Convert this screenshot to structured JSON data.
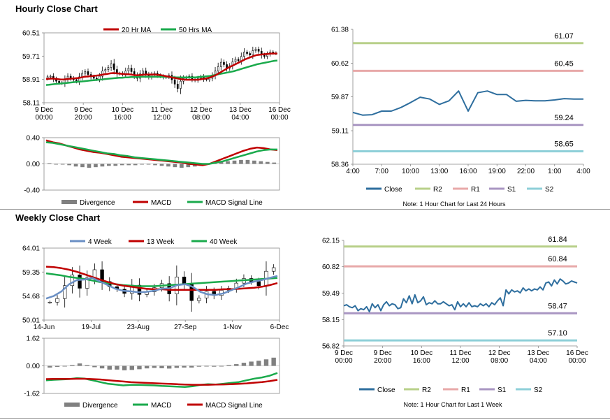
{
  "sections": {
    "hourly_title": "Hourly Close Chart",
    "weekly_title": "Weekly Close Chart"
  },
  "colors": {
    "ma_short": "#c00000",
    "ma_long": "#1aaa4c",
    "close": "#2e6e9e",
    "r2": "#b8d08a",
    "r1": "#e8a9a9",
    "s1": "#a996c2",
    "s2": "#8ecfd8",
    "divergence": "#808080",
    "week4": "#6a8fc4"
  },
  "chart_data": [
    {
      "id": "hourly_price",
      "type": "candlestick",
      "legend": [
        "20 Hr MA",
        "50 Hrs MA"
      ],
      "y_ticks": [
        "60.51",
        "59.71",
        "58.91",
        "58.11"
      ],
      "ylim": [
        58.11,
        60.51
      ],
      "x_ticks": [
        "9 Dec\n00:00",
        "9 Dec\n20:00",
        "10 Dec\n16:00",
        "11 Dec\n12:00",
        "12 Dec\n08:00",
        "13 Dec\n04:00",
        "16 Dec\n00:00"
      ],
      "closes": [
        59.0,
        59.02,
        58.92,
        58.85,
        58.8,
        58.78,
        58.92,
        59.02,
        58.95,
        58.9,
        58.85,
        59.0,
        59.12,
        59.18,
        59.08,
        59.0,
        58.95,
        58.92,
        59.02,
        59.2,
        59.25,
        59.32,
        59.45,
        59.25,
        59.1,
        59.12,
        59.08,
        59.2,
        59.3,
        59.18,
        59.05,
        58.95,
        59.1,
        59.2,
        59.08,
        59.0,
        59.08,
        59.12,
        59.05,
        59.02,
        58.98,
        59.0,
        59.05,
        58.9,
        58.75,
        58.6,
        58.85,
        58.95,
        58.98,
        59.02,
        58.92,
        58.88,
        58.95,
        59.0,
        58.92,
        58.9,
        58.95,
        59.05,
        59.2,
        59.35,
        59.5,
        59.42,
        59.3,
        59.38,
        59.52,
        59.6,
        59.55,
        59.7,
        59.85,
        59.8,
        59.75,
        59.9,
        59.95,
        59.88,
        59.75,
        59.7,
        59.78,
        59.85,
        59.82,
        59.8
      ],
      "ma20": [
        58.92,
        58.93,
        58.94,
        58.93,
        58.92,
        58.91,
        58.91,
        58.92,
        58.93,
        58.94,
        58.95,
        58.96,
        58.98,
        59.0,
        59.01,
        59.02,
        59.03,
        59.04,
        59.05,
        59.07,
        59.09,
        59.1,
        59.12,
        59.13,
        59.12,
        59.11,
        59.1,
        59.09,
        59.09,
        59.08,
        59.06,
        59.05,
        59.06,
        59.07,
        59.08,
        59.08,
        59.08,
        59.08,
        59.07,
        59.06,
        59.04,
        59.02,
        59.0,
        58.98,
        58.96,
        58.94,
        58.92,
        58.91,
        58.9,
        58.9,
        58.9,
        58.9,
        58.9,
        58.92,
        58.93,
        58.95,
        58.98,
        59.02,
        59.06,
        59.12,
        59.18,
        59.24,
        59.3,
        59.35,
        59.4,
        59.45,
        59.5,
        59.55,
        59.6,
        59.64,
        59.68,
        59.72,
        59.75,
        59.76,
        59.77,
        59.78,
        59.79,
        59.8,
        59.8,
        59.8
      ],
      "ma50": [
        58.72,
        58.73,
        58.74,
        58.75,
        58.76,
        58.77,
        58.78,
        58.79,
        58.8,
        58.81,
        58.82,
        58.83,
        58.84,
        58.85,
        58.86,
        58.87,
        58.88,
        58.89,
        58.9,
        58.91,
        58.92,
        58.93,
        58.94,
        58.95,
        58.96,
        58.97,
        58.97,
        58.98,
        58.98,
        58.99,
        58.99,
        58.99,
        59.0,
        59.0,
        59.0,
        59.0,
        59.0,
        59.0,
        59.0,
        59.0,
        59.0,
        59.0,
        58.99,
        58.99,
        58.98,
        58.98,
        58.98,
        58.98,
        58.98,
        58.98,
        58.98,
        58.98,
        58.99,
        59.0,
        59.01,
        59.02,
        59.03,
        59.05,
        59.07,
        59.09,
        59.11,
        59.13,
        59.15,
        59.17,
        59.19,
        59.22,
        59.25,
        59.28,
        59.31,
        59.34,
        59.37,
        59.4,
        59.43,
        59.45,
        59.47,
        59.49,
        59.51,
        59.53,
        59.55,
        59.56
      ]
    },
    {
      "id": "hourly_macd",
      "type": "macd",
      "legend": [
        "Divergence",
        "MACD",
        "MACD Signal Line"
      ],
      "y_ticks": [
        "0.40",
        "0.00",
        "-0.40"
      ],
      "ylim": [
        -0.4,
        0.4
      ],
      "macd": [
        0.36,
        0.33,
        0.31,
        0.28,
        0.25,
        0.22,
        0.2,
        0.18,
        0.17,
        0.15,
        0.13,
        0.11,
        0.1,
        0.09,
        0.08,
        0.07,
        0.06,
        0.05,
        0.04,
        0.03,
        0.02,
        0.0,
        -0.01,
        -0.02,
        0.0,
        0.04,
        0.08,
        0.12,
        0.16,
        0.2,
        0.23,
        0.25,
        0.24,
        0.22,
        0.21
      ],
      "signal": [
        0.33,
        0.32,
        0.3,
        0.28,
        0.26,
        0.24,
        0.22,
        0.2,
        0.18,
        0.16,
        0.15,
        0.13,
        0.12,
        0.1,
        0.09,
        0.08,
        0.07,
        0.06,
        0.05,
        0.04,
        0.03,
        0.02,
        0.01,
        0.0,
        0.0,
        0.02,
        0.04,
        0.07,
        0.1,
        0.13,
        0.16,
        0.19,
        0.21,
        0.22,
        0.22
      ],
      "divergence": [
        0.01,
        0.0,
        -0.01,
        -0.02,
        -0.04,
        -0.05,
        -0.06,
        -0.05,
        -0.04,
        -0.03,
        -0.03,
        -0.02,
        -0.02,
        -0.02,
        -0.01,
        -0.01,
        -0.02,
        -0.03,
        -0.04,
        -0.05,
        -0.06,
        -0.05,
        -0.04,
        -0.03,
        -0.01,
        0.01,
        0.03,
        0.04,
        0.05,
        0.06,
        0.06,
        0.05,
        0.04,
        0.03,
        0.02
      ]
    },
    {
      "id": "hourly_close",
      "type": "line",
      "y_ticks": [
        "61.38",
        "60.62",
        "59.87",
        "59.11",
        "58.36"
      ],
      "ylim": [
        58.36,
        61.38
      ],
      "x_ticks": [
        "4:00",
        "7:00",
        "10:00",
        "13:00",
        "16:00",
        "19:00",
        "22:00",
        "1:00",
        "4:00"
      ],
      "levels": [
        {
          "name": "R2",
          "value": 61.07,
          "label": "61.07"
        },
        {
          "name": "R1",
          "value": 60.45,
          "label": "60.45"
        },
        {
          "name": "S1",
          "value": 59.24,
          "label": "59.24"
        },
        {
          "name": "S2",
          "value": 58.65,
          "label": "58.65"
        }
      ],
      "legend": [
        "Close",
        "R2",
        "R1",
        "S1",
        "S2"
      ],
      "note": "Note: 1 Hour Chart for Last 24 Hours",
      "values": [
        59.52,
        59.46,
        59.47,
        59.55,
        59.55,
        59.63,
        59.74,
        59.86,
        59.82,
        59.7,
        59.78,
        60.0,
        59.55,
        59.96,
        60.0,
        59.92,
        59.92,
        59.77,
        59.79,
        59.78,
        59.78,
        59.8,
        59.83,
        59.82,
        59.82
      ]
    },
    {
      "id": "weekly_price",
      "type": "candlestick",
      "legend": [
        "4 Week",
        "13 Week",
        "40 Week"
      ],
      "y_ticks": [
        "64.01",
        "59.35",
        "54.68",
        "50.01"
      ],
      "ylim": [
        50.01,
        64.01
      ],
      "x_ticks": [
        "14-Jun",
        "19-Jul",
        "23-Aug",
        "27-Sep",
        "1-Nov",
        "6-Dec"
      ],
      "closes": [
        53.5,
        54.2,
        56.7,
        58.8,
        56.2,
        58.2,
        59.8,
        57.5,
        56.5,
        56.0,
        55.2,
        56.8,
        55.0,
        55.5,
        56.3,
        57.1,
        55.1,
        58.4,
        57.0,
        53.8,
        54.3,
        55.6,
        54.8,
        55.8,
        56.2,
        57.2,
        58.1,
        57.5,
        56.7,
        59.5,
        60.2
      ],
      "w4": [
        54.2,
        54.7,
        55.6,
        57.0,
        57.8,
        57.9,
        58.2,
        57.5,
        56.8,
        56.1,
        55.7,
        55.6,
        55.4,
        55.5,
        55.7,
        56.1,
        56.2,
        56.8,
        57.0,
        56.5,
        55.5,
        55.0,
        54.9,
        55.2,
        55.8,
        56.4,
        57.1,
        57.5,
        57.8,
        58.2,
        58.6
      ],
      "w13": [
        60.4,
        60.3,
        60.1,
        59.8,
        59.4,
        58.9,
        58.4,
        57.9,
        57.4,
        57.0,
        56.7,
        56.5,
        56.3,
        56.1,
        56.0,
        56.0,
        55.9,
        55.9,
        55.9,
        55.9,
        55.9,
        55.9,
        55.9,
        56.0,
        56.0,
        56.1,
        56.2,
        56.3,
        56.5,
        56.8,
        57.2
      ],
      "w40": [
        59.1,
        58.9,
        58.7,
        58.4,
        58.2,
        58.0,
        57.7,
        57.4,
        57.2,
        57.0,
        56.8,
        56.7,
        56.6,
        56.6,
        56.6,
        56.7,
        56.8,
        56.9,
        57.0,
        57.1,
        57.2,
        57.3,
        57.4,
        57.5,
        57.6,
        57.7,
        57.8,
        57.9,
        58.0,
        58.1,
        58.2
      ]
    },
    {
      "id": "weekly_macd",
      "type": "macd",
      "legend": [
        "Divergence",
        "MACD",
        "MACD Signal Line"
      ],
      "y_ticks": [
        "1.62",
        "0.00",
        "-1.62"
      ],
      "ylim": [
        -1.62,
        1.62
      ],
      "macd": [
        -0.85,
        -0.82,
        -0.8,
        -0.78,
        -0.72,
        -0.75,
        -0.85,
        -0.95,
        -1.05,
        -1.1,
        -1.15,
        -1.12,
        -1.12,
        -1.13,
        -1.15,
        -1.18,
        -1.2,
        -1.22,
        -1.24,
        -1.2,
        -1.12,
        -1.08,
        -1.1,
        -1.05,
        -1.0,
        -0.95,
        -0.85,
        -0.75,
        -0.68,
        -0.58,
        -0.42
      ],
      "signal": [
        -0.78,
        -0.77,
        -0.77,
        -0.77,
        -0.76,
        -0.76,
        -0.78,
        -0.8,
        -0.84,
        -0.88,
        -0.92,
        -0.96,
        -0.98,
        -1.0,
        -1.02,
        -1.04,
        -1.06,
        -1.08,
        -1.1,
        -1.11,
        -1.11,
        -1.11,
        -1.1,
        -1.09,
        -1.08,
        -1.06,
        -1.03,
        -0.99,
        -0.95,
        -0.9,
        -0.82
      ],
      "divergence": [
        -0.1,
        -0.06,
        0.0,
        0.05,
        0.14,
        0.05,
        -0.08,
        -0.15,
        -0.22,
        -0.22,
        -0.26,
        -0.24,
        -0.2,
        -0.15,
        -0.12,
        -0.14,
        -0.16,
        -0.12,
        -0.1,
        -0.1,
        -0.05,
        -0.03,
        -0.05,
        0.0,
        0.05,
        0.1,
        0.18,
        0.25,
        0.3,
        0.38,
        0.48
      ]
    },
    {
      "id": "weekly_close",
      "type": "line",
      "y_ticks": [
        "62.15",
        "60.82",
        "59.49",
        "58.15",
        "56.82"
      ],
      "ylim": [
        56.82,
        62.15
      ],
      "x_ticks": [
        "9 Dec\n00:00",
        "9 Dec\n20:00",
        "10 Dec\n16:00",
        "11 Dec\n12:00",
        "12 Dec\n08:00",
        "13 Dec\n04:00",
        "16 Dec\n00:00"
      ],
      "levels": [
        {
          "name": "R2",
          "value": 61.84,
          "label": "61.84"
        },
        {
          "name": "R1",
          "value": 60.84,
          "label": "60.84"
        },
        {
          "name": "S1",
          "value": 58.47,
          "label": "58.47"
        },
        {
          "name": "S2",
          "value": 57.1,
          "label": "57.10"
        }
      ],
      "legend": [
        "Close",
        "R2",
        "R1",
        "S1",
        "S2"
      ],
      "note": "Note: 1 Hour Chart for Last 1 Week",
      "values": [
        58.85,
        58.9,
        58.8,
        58.75,
        58.85,
        58.6,
        58.7,
        58.65,
        58.8,
        58.55,
        58.95,
        58.75,
        58.9,
        58.6,
        58.9,
        59.05,
        58.85,
        58.95,
        58.9,
        58.7,
        58.75,
        59.2,
        59.0,
        59.35,
        58.95,
        59.4,
        59.0,
        59.1,
        59.3,
        58.9,
        59.0,
        58.95,
        59.1,
        58.95,
        58.95,
        59.05,
        58.95,
        58.85,
        58.9,
        58.65,
        59.05,
        58.8,
        58.95,
        58.8,
        59.0,
        58.8,
        58.85,
        58.8,
        58.95,
        58.85,
        58.95,
        58.8,
        59.0,
        58.9,
        59.1,
        59.25,
        58.85,
        59.65,
        59.45,
        59.65,
        59.55,
        59.6,
        59.5,
        59.75,
        59.6,
        59.7,
        59.6,
        59.7,
        59.65,
        59.8,
        59.65,
        60.0,
        60.05,
        59.85,
        60.15,
        59.95,
        60.2,
        60.1,
        59.95,
        60.0,
        60.1,
        60.05,
        60.0
      ]
    }
  ]
}
